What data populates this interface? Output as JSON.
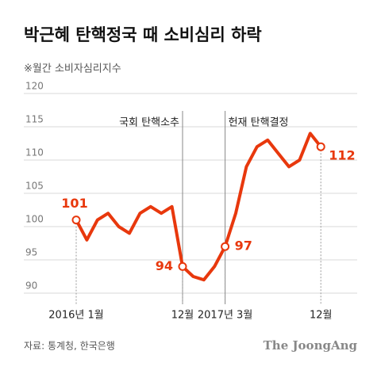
{
  "chart_data": {
    "type": "line",
    "title": "박근혜 탄핵정국 때 소비심리 하락",
    "subtitle": "※월간 소비자심리지수",
    "categories": [
      "2016년 1월",
      null,
      null,
      null,
      null,
      null,
      null,
      null,
      null,
      null,
      "12월",
      null,
      null,
      null,
      "2017년 3월",
      null,
      null,
      null,
      null,
      null,
      null,
      null,
      null,
      "12월"
    ],
    "series": [
      {
        "name": "소비자심리지수",
        "color": "#e8380d",
        "values": [
          101,
          98,
          101,
          102,
          100,
          99,
          102,
          103,
          102,
          103,
          94,
          92.5,
          92,
          94,
          97,
          102,
          109,
          112,
          113,
          111,
          109,
          110,
          114,
          112
        ]
      }
    ],
    "labeled": [
      0,
      10,
      14,
      23
    ],
    "annotations": [
      {
        "text": "국회 탄핵소추",
        "index": 10
      },
      {
        "text": "헌재 탄핵결정",
        "index": 14
      }
    ],
    "ylim": [
      90,
      120
    ],
    "yticks": [
      90,
      95,
      100,
      105,
      110,
      115,
      120
    ],
    "grid": true,
    "source": "자료: 통계청, 한국은행",
    "logo": "The JoongAng"
  }
}
